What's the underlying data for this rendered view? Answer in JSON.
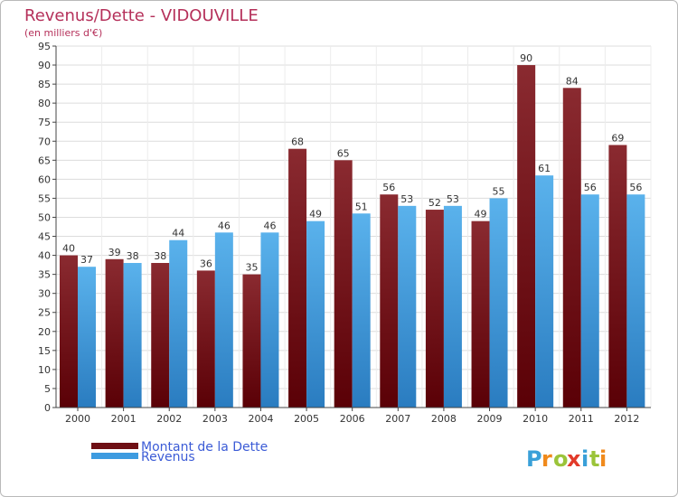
{
  "chart_data": {
    "type": "bar",
    "title": "Revenus/Dette - VIDOUVILLE",
    "subtitle": "(en milliers d'€)",
    "categories": [
      "2000",
      "2001",
      "2002",
      "2003",
      "2004",
      "2005",
      "2006",
      "2007",
      "2008",
      "2009",
      "2010",
      "2011",
      "2012"
    ],
    "series": [
      {
        "name": "Montant de la Dette",
        "color": "#6e0f14",
        "values": [
          40,
          39,
          38,
          36,
          35,
          68,
          65,
          56,
          52,
          49,
          90,
          84,
          69
        ]
      },
      {
        "name": "Revenus",
        "color": "#3d9be0",
        "values": [
          37,
          38,
          44,
          46,
          46,
          49,
          51,
          53,
          53,
          55,
          61,
          56,
          56
        ]
      }
    ],
    "ylim": [
      0,
      95
    ],
    "yticks": [
      0,
      5,
      10,
      15,
      20,
      25,
      30,
      35,
      40,
      45,
      50,
      55,
      60,
      65,
      70,
      75,
      80,
      85,
      90,
      95
    ],
    "grid": true,
    "legend_position": "bottom-left"
  },
  "brand": {
    "letters": [
      "P",
      "r",
      "o",
      "x",
      "i",
      "t",
      "i"
    ],
    "colors": [
      "#3aa0d8",
      "#f08a1c",
      "#9bc43a",
      "#e23a2a",
      "#3aa0d8",
      "#9bc43a",
      "#f08a1c"
    ]
  }
}
